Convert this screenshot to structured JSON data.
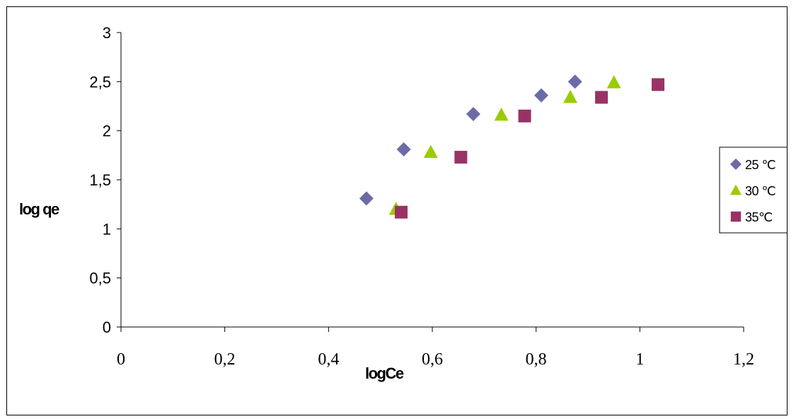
{
  "chart_data": {
    "type": "scatter",
    "title": "",
    "xlabel": "logCe",
    "ylabel": "log qe",
    "xlim": [
      0,
      1.2
    ],
    "ylim": [
      0,
      3
    ],
    "xticks": [
      0,
      0.2,
      0.4,
      0.6,
      0.8,
      1,
      1.2
    ],
    "xtick_labels": [
      "0",
      "0,2",
      "0,4",
      "0,6",
      "0,8",
      "1",
      "1,2"
    ],
    "yticks": [
      0,
      0.5,
      1,
      1.5,
      2,
      2.5,
      3
    ],
    "ytick_labels": [
      "0",
      "0,5",
      "1",
      "1,5",
      "2",
      "2,5",
      "3"
    ],
    "grid": false,
    "legend_position": "right",
    "series": [
      {
        "name": "25 ℃",
        "marker": "diamond",
        "color": "#6b6ba8",
        "x": [
          0.473,
          0.545,
          0.679,
          0.81,
          0.875
        ],
        "y": [
          1.31,
          1.81,
          2.17,
          2.36,
          2.5
        ]
      },
      {
        "name": "30 ℃",
        "marker": "triangle",
        "color": "#99cc00",
        "x": [
          0.53,
          0.597,
          0.733,
          0.866,
          0.95
        ],
        "y": [
          1.2,
          1.78,
          2.16,
          2.34,
          2.49
        ]
      },
      {
        "name": "35℃",
        "marker": "square",
        "color": "#993366",
        "x": [
          0.54,
          0.655,
          0.778,
          0.926,
          1.035
        ],
        "y": [
          1.17,
          1.73,
          2.15,
          2.34,
          2.47
        ]
      }
    ]
  }
}
